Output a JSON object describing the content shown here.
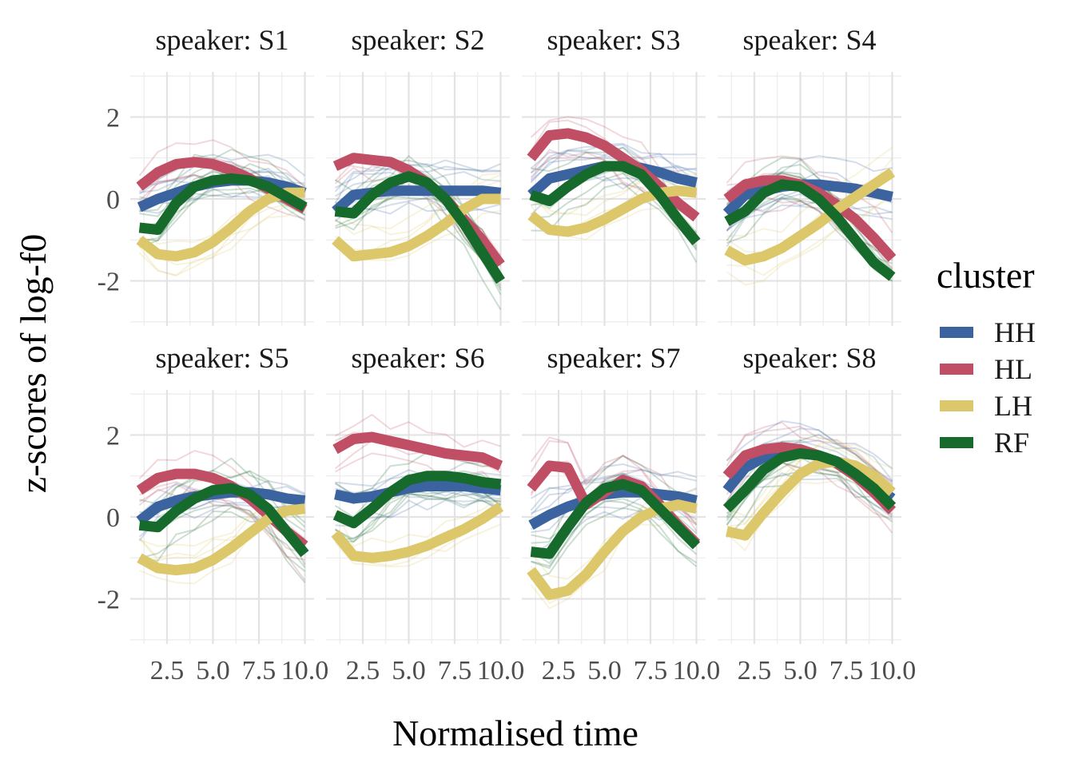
{
  "chart_data": {
    "type": "line",
    "facet_variable": "speaker",
    "xlabel": "Normalised time",
    "ylabel": "z-scores of log-f0",
    "xlim": [
      0.5,
      10.5
    ],
    "ylim": [
      -3.1,
      3.1
    ],
    "x_ticks": [
      "2.5",
      "5.0",
      "7.5",
      "10.0"
    ],
    "x_tick_values": [
      2.5,
      5.0,
      7.5,
      10.0
    ],
    "y_ticks": [
      "-2",
      "0",
      "2"
    ],
    "y_tick_values": [
      -2,
      0,
      2
    ],
    "grid": true,
    "legend": {
      "title": "cluster",
      "position": "right",
      "entries": [
        "HH",
        "HL",
        "LH",
        "RF"
      ]
    },
    "colors": {
      "HH": "#3a63a0",
      "HL": "#c04f65",
      "LH": "#dcc86a",
      "RF": "#166a2c"
    },
    "x": [
      1,
      2,
      3,
      4,
      5,
      6,
      7,
      8,
      9,
      10
    ],
    "facets": [
      {
        "label": "speaker: S1",
        "series": [
          {
            "name": "HH",
            "values": [
              -0.2,
              0.0,
              0.15,
              0.3,
              0.4,
              0.45,
              0.45,
              0.4,
              0.3,
              0.15
            ]
          },
          {
            "name": "HL",
            "values": [
              0.3,
              0.65,
              0.85,
              0.9,
              0.85,
              0.7,
              0.5,
              0.25,
              0.0,
              -0.25
            ]
          },
          {
            "name": "LH",
            "values": [
              -1.0,
              -1.35,
              -1.4,
              -1.3,
              -1.05,
              -0.7,
              -0.3,
              0.0,
              0.15,
              0.15
            ]
          },
          {
            "name": "RF",
            "values": [
              -0.7,
              -0.75,
              -0.1,
              0.3,
              0.45,
              0.5,
              0.45,
              0.3,
              0.05,
              -0.2
            ]
          }
        ]
      },
      {
        "label": "speaker: S2",
        "series": [
          {
            "name": "HH",
            "values": [
              -0.3,
              0.1,
              0.15,
              0.2,
              0.2,
              0.2,
              0.2,
              0.2,
              0.2,
              0.15
            ]
          },
          {
            "name": "HL",
            "values": [
              0.8,
              1.0,
              0.95,
              0.9,
              0.7,
              0.4,
              0.0,
              -0.5,
              -1.0,
              -1.6
            ]
          },
          {
            "name": "LH",
            "values": [
              -1.0,
              -1.4,
              -1.35,
              -1.3,
              -1.15,
              -0.9,
              -0.6,
              -0.25,
              0.0,
              0.0
            ]
          },
          {
            "name": "RF",
            "values": [
              -0.3,
              -0.35,
              0.1,
              0.4,
              0.55,
              0.4,
              0.0,
              -0.6,
              -1.3,
              -2.0
            ]
          }
        ]
      },
      {
        "label": "speaker: S3",
        "series": [
          {
            "name": "HH",
            "values": [
              0.1,
              0.5,
              0.6,
              0.7,
              0.8,
              0.8,
              0.75,
              0.65,
              0.5,
              0.4
            ]
          },
          {
            "name": "HL",
            "values": [
              1.0,
              1.55,
              1.6,
              1.5,
              1.3,
              1.0,
              0.7,
              0.3,
              -0.1,
              -0.45
            ]
          },
          {
            "name": "LH",
            "values": [
              -0.4,
              -0.75,
              -0.8,
              -0.7,
              -0.5,
              -0.25,
              0.0,
              0.15,
              0.2,
              0.15
            ]
          },
          {
            "name": "RF",
            "values": [
              0.1,
              -0.05,
              0.3,
              0.6,
              0.8,
              0.8,
              0.6,
              0.1,
              -0.5,
              -1.05
            ]
          }
        ]
      },
      {
        "label": "speaker: S4",
        "series": [
          {
            "name": "HH",
            "values": [
              -0.35,
              0.1,
              0.2,
              0.3,
              0.35,
              0.35,
              0.3,
              0.25,
              0.15,
              0.05
            ]
          },
          {
            "name": "HL",
            "values": [
              0.0,
              0.35,
              0.45,
              0.45,
              0.35,
              0.15,
              -0.15,
              -0.5,
              -0.95,
              -1.45
            ]
          },
          {
            "name": "LH",
            "values": [
              -1.25,
              -1.5,
              -1.4,
              -1.2,
              -0.9,
              -0.6,
              -0.25,
              0.05,
              0.35,
              0.65
            ]
          },
          {
            "name": "RF",
            "values": [
              -0.55,
              -0.3,
              0.15,
              0.35,
              0.3,
              0.0,
              -0.45,
              -1.0,
              -1.55,
              -1.9
            ]
          }
        ]
      },
      {
        "label": "speaker: S5",
        "series": [
          {
            "name": "HH",
            "values": [
              -0.1,
              0.25,
              0.4,
              0.5,
              0.55,
              0.6,
              0.6,
              0.55,
              0.45,
              0.4
            ]
          },
          {
            "name": "HL",
            "values": [
              0.65,
              0.95,
              1.05,
              1.05,
              0.95,
              0.75,
              0.45,
              0.05,
              -0.35,
              -0.7
            ]
          },
          {
            "name": "LH",
            "values": [
              -1.0,
              -1.25,
              -1.3,
              -1.25,
              -1.05,
              -0.75,
              -0.4,
              -0.05,
              0.15,
              0.2
            ]
          },
          {
            "name": "RF",
            "values": [
              -0.2,
              -0.25,
              0.15,
              0.45,
              0.65,
              0.7,
              0.55,
              0.2,
              -0.35,
              -0.9
            ]
          }
        ]
      },
      {
        "label": "speaker: S6",
        "series": [
          {
            "name": "HH",
            "values": [
              0.55,
              0.45,
              0.5,
              0.6,
              0.7,
              0.75,
              0.75,
              0.75,
              0.7,
              0.65
            ]
          },
          {
            "name": "HL",
            "values": [
              1.65,
              1.9,
              1.95,
              1.85,
              1.75,
              1.65,
              1.55,
              1.5,
              1.45,
              1.25
            ]
          },
          {
            "name": "LH",
            "values": [
              -0.4,
              -0.95,
              -1.0,
              -0.95,
              -0.85,
              -0.7,
              -0.5,
              -0.3,
              -0.05,
              0.25
            ]
          },
          {
            "name": "RF",
            "values": [
              0.05,
              -0.15,
              0.2,
              0.6,
              0.9,
              1.0,
              1.0,
              0.95,
              0.85,
              0.8
            ]
          }
        ]
      },
      {
        "label": "speaker: S7",
        "series": [
          {
            "name": "HH",
            "values": [
              -0.2,
              0.05,
              0.25,
              0.4,
              0.55,
              0.6,
              0.6,
              0.55,
              0.5,
              0.4
            ]
          },
          {
            "name": "HL",
            "values": [
              0.7,
              1.25,
              1.2,
              0.3,
              0.6,
              0.9,
              0.75,
              0.3,
              -0.2,
              -0.65
            ]
          },
          {
            "name": "LH",
            "values": [
              -1.3,
              -1.9,
              -1.8,
              -1.4,
              -0.85,
              -0.35,
              0.0,
              0.2,
              0.3,
              0.2
            ]
          },
          {
            "name": "RF",
            "values": [
              -0.85,
              -0.9,
              -0.25,
              0.35,
              0.7,
              0.8,
              0.65,
              0.2,
              -0.25,
              -0.7
            ]
          }
        ]
      },
      {
        "label": "speaker: S8",
        "series": [
          {
            "name": "HH",
            "values": [
              0.65,
              1.2,
              1.45,
              1.55,
              1.55,
              1.5,
              1.35,
              1.1,
              0.8,
              0.45
            ]
          },
          {
            "name": "HL",
            "values": [
              1.0,
              1.5,
              1.65,
              1.7,
              1.65,
              1.5,
              1.3,
              1.0,
              0.6,
              0.15
            ]
          },
          {
            "name": "LH",
            "values": [
              -0.35,
              -0.45,
              0.1,
              0.6,
              1.05,
              1.3,
              1.35,
              1.25,
              1.0,
              0.6
            ]
          },
          {
            "name": "RF",
            "values": [
              0.2,
              0.65,
              1.15,
              1.45,
              1.55,
              1.5,
              1.35,
              1.05,
              0.7,
              0.25
            ]
          }
        ]
      }
    ]
  }
}
